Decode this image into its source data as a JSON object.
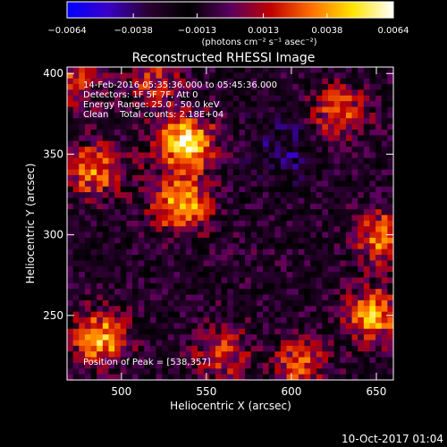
{
  "chart_data": {
    "type": "heatmap",
    "title": "Reconstructed RHESSI Image",
    "xlabel": "Heliocentric X (arcsec)",
    "ylabel": "Heliocentric Y (arcsec)",
    "xlim": [
      468,
      660
    ],
    "ylim": [
      210,
      404
    ],
    "x_ticks": [
      500,
      550,
      600,
      650
    ],
    "y_ticks": [
      250,
      300,
      350,
      400
    ],
    "colorbar": {
      "range": [
        -0.0064,
        0.0064
      ],
      "tick_values": [
        -0.0064,
        -0.0038,
        -0.0013,
        0.0013,
        0.0038,
        0.0064
      ],
      "tick_labels": [
        "−0.0064",
        "−0.0038",
        "−0.0013",
        "0.0013",
        "0.0038",
        "0.0064"
      ],
      "units_label": "(photons cm⁻² s⁻¹ asec⁻²)",
      "colors": [
        "#0000ff",
        "#3a00c8",
        "#2a0030",
        "#000000",
        "#5a0060",
        "#c00000",
        "#ff7000",
        "#ffe400",
        "#ffffff"
      ]
    },
    "annotations": [
      "14-Feb-2016 05:35:36.000 to 05:45:36.000",
      "Detectors: 1F 5F 7F, Att 0",
      "Energy Range: 25.0 - 50.0 keV",
      "Clean    Total counts: 2.18E+04"
    ],
    "peak_label": "Position of Peak = [538,357]",
    "peak": [
      538,
      357
    ],
    "hotspots": [
      {
        "x": 538,
        "y": 357,
        "value": 0.0064
      },
      {
        "x": 535,
        "y": 318,
        "value": 0.0055
      },
      {
        "x": 488,
        "y": 236,
        "value": 0.0052
      },
      {
        "x": 483,
        "y": 340,
        "value": 0.0042
      },
      {
        "x": 648,
        "y": 250,
        "value": 0.005
      },
      {
        "x": 655,
        "y": 298,
        "value": 0.0045
      },
      {
        "x": 628,
        "y": 376,
        "value": 0.004
      },
      {
        "x": 605,
        "y": 220,
        "value": 0.0035
      },
      {
        "x": 470,
        "y": 395,
        "value": 0.0035
      },
      {
        "x": 520,
        "y": 395,
        "value": 0.003
      },
      {
        "x": 560,
        "y": 225,
        "value": 0.0028
      }
    ],
    "coldspots": [
      {
        "x": 598,
        "y": 355,
        "value": -0.0035
      },
      {
        "x": 575,
        "y": 288,
        "value": -0.0012
      },
      {
        "x": 508,
        "y": 345,
        "value": -0.001
      },
      {
        "x": 555,
        "y": 240,
        "value": -0.001
      }
    ]
  },
  "footer": {
    "timestamp": "10-Oct-2017 01:04"
  }
}
